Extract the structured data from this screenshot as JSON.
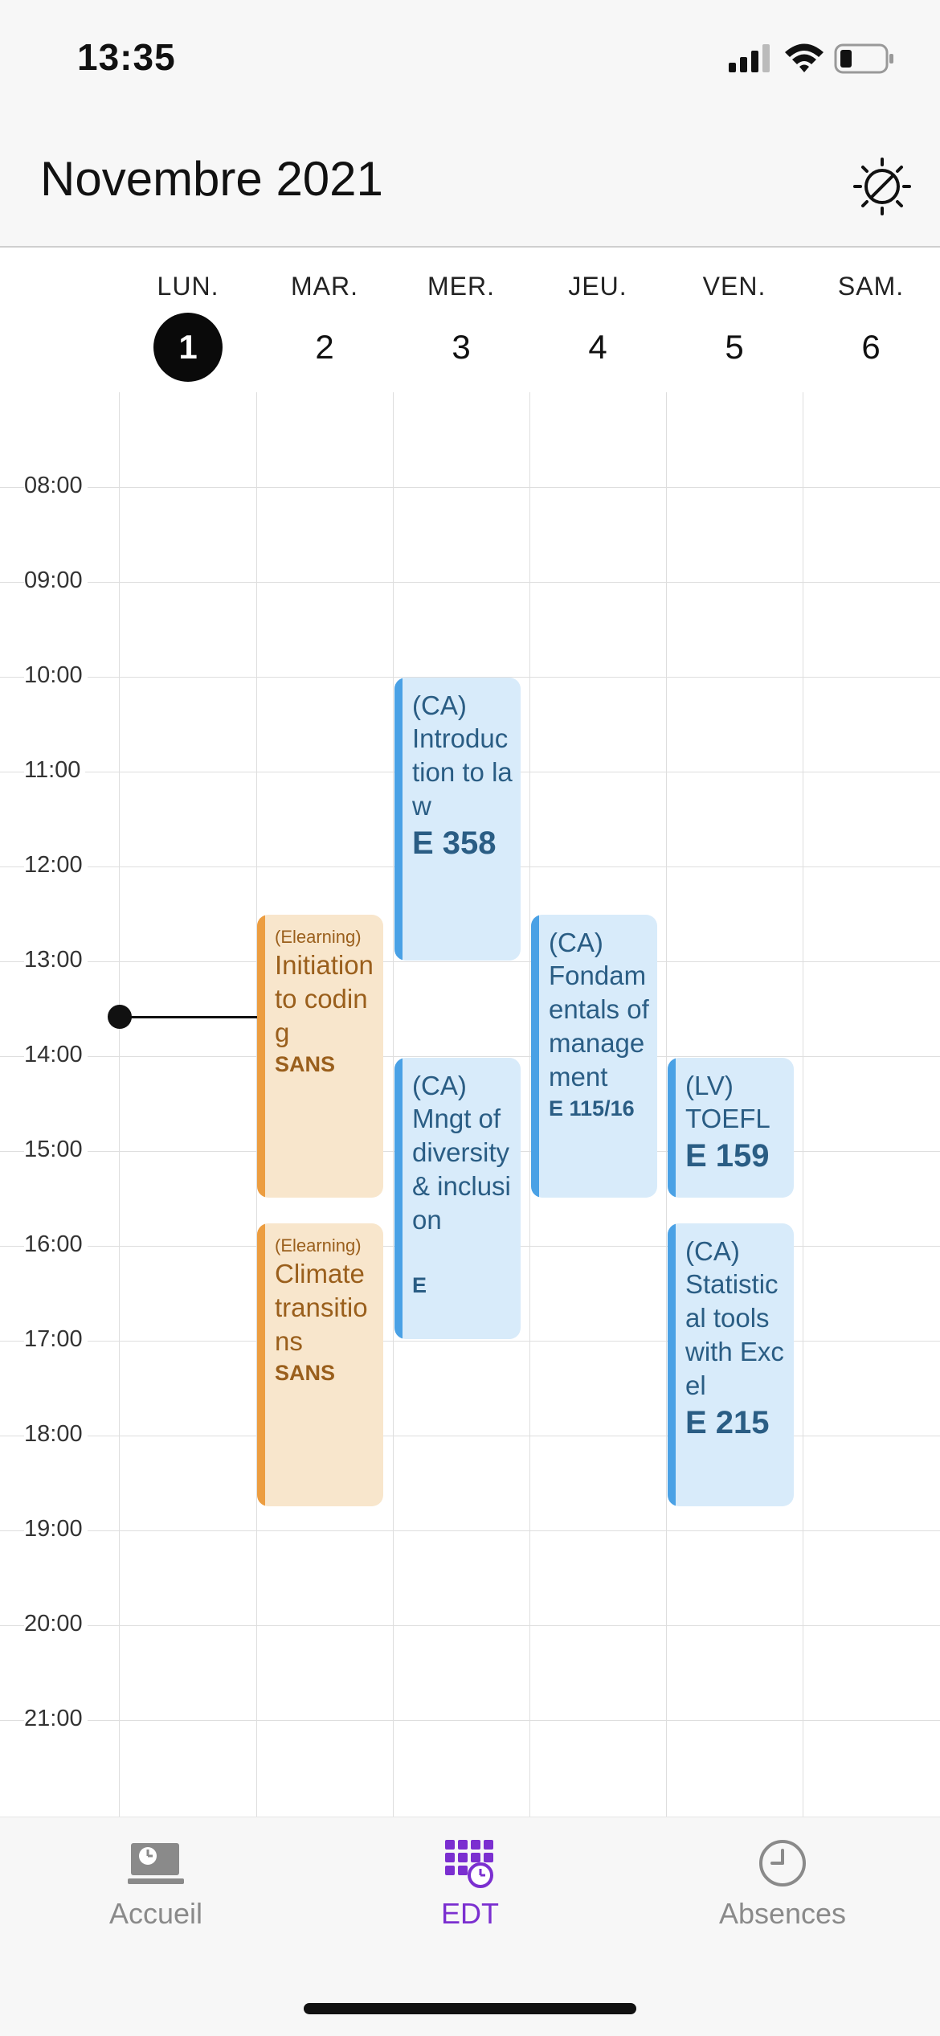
{
  "status": {
    "time": "13:35"
  },
  "header": {
    "title": "Novembre 2021",
    "theme_icon": "theme-toggle-icon"
  },
  "days": [
    {
      "name": "LUN.",
      "num": "1",
      "today": true
    },
    {
      "name": "MAR.",
      "num": "2"
    },
    {
      "name": "MER.",
      "num": "3"
    },
    {
      "name": "JEU.",
      "num": "4"
    },
    {
      "name": "VEN.",
      "num": "5"
    },
    {
      "name": "SAM.",
      "num": "6"
    }
  ],
  "hours": [
    "08:00",
    "09:00",
    "10:00",
    "11:00",
    "12:00",
    "13:00",
    "14:00",
    "15:00",
    "16:00",
    "17:00",
    "18:00",
    "19:00",
    "20:00",
    "21:00"
  ],
  "events": [
    {
      "category": "(CA)",
      "title": "Introduction to law",
      "room": "E 358"
    },
    {
      "category": "(Elearning)",
      "title": "Initiation to coding",
      "room": "SANS"
    },
    {
      "category": "(CA)",
      "title": "Fondamentals of management",
      "room": "E 115/16"
    },
    {
      "category": "(CA)",
      "title": "Mngt of diversity & inclusion",
      "room": "E"
    },
    {
      "category": "(LV)",
      "title": "TOEFL",
      "room": "E 159"
    },
    {
      "category": "(Elearning)",
      "title": "Climate transitions",
      "room": "SANS"
    },
    {
      "category": "(CA)",
      "title": "Statistical tools with Excel",
      "room": "E 215"
    }
  ],
  "tabs": [
    {
      "label": "Accueil",
      "icon": "home-computer-icon"
    },
    {
      "label": "EDT",
      "icon": "calendar-clock-icon",
      "active": true
    },
    {
      "label": "Absences",
      "icon": "clock-icon"
    }
  ],
  "colors": {
    "accent": "#7b2fd0",
    "event_blue": "#4aa1e5",
    "event_orange": "#ec9d40"
  }
}
